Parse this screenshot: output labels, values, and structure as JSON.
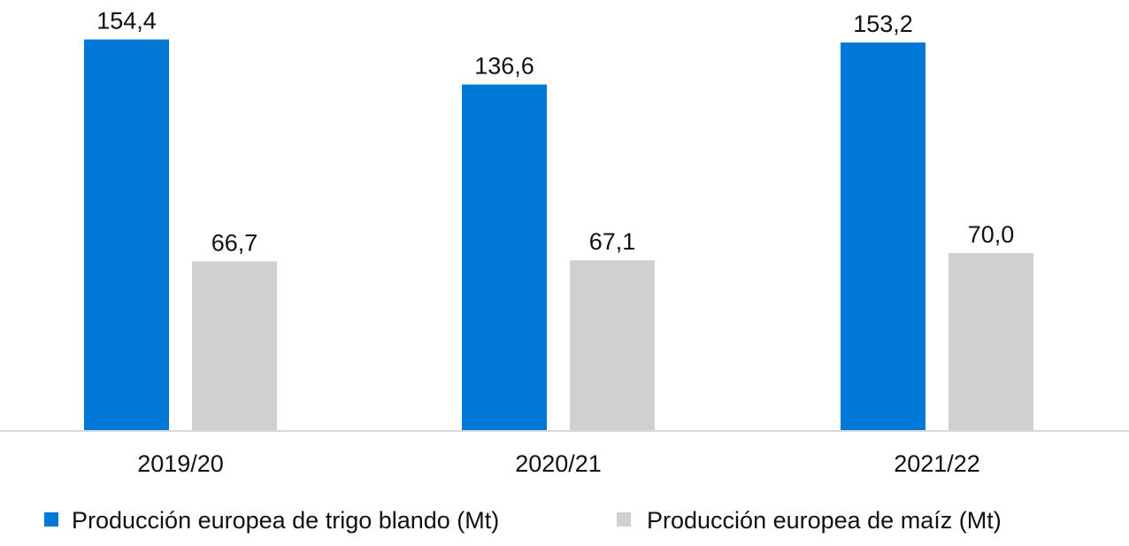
{
  "chart_data": {
    "type": "bar",
    "categories": [
      "2019/20",
      "2020/21",
      "2021/22"
    ],
    "series": [
      {
        "name": "Producción europea de trigo blando (Mt)",
        "values": [
          154.4,
          136.6,
          153.2
        ],
        "labels": [
          "154,4",
          "136,6",
          "153,2"
        ],
        "color": "#0078d7"
      },
      {
        "name": "Producción europea de maíz (Mt)",
        "values": [
          66.7,
          67.1,
          70.0
        ],
        "labels": [
          "66,7",
          "67,1",
          "70,0"
        ],
        "color": "#d0d0d2"
      }
    ],
    "ylim": [
      0,
      170
    ],
    "grid": false,
    "legend_position": "bottom",
    "axis_color": "#d9d9d9"
  }
}
